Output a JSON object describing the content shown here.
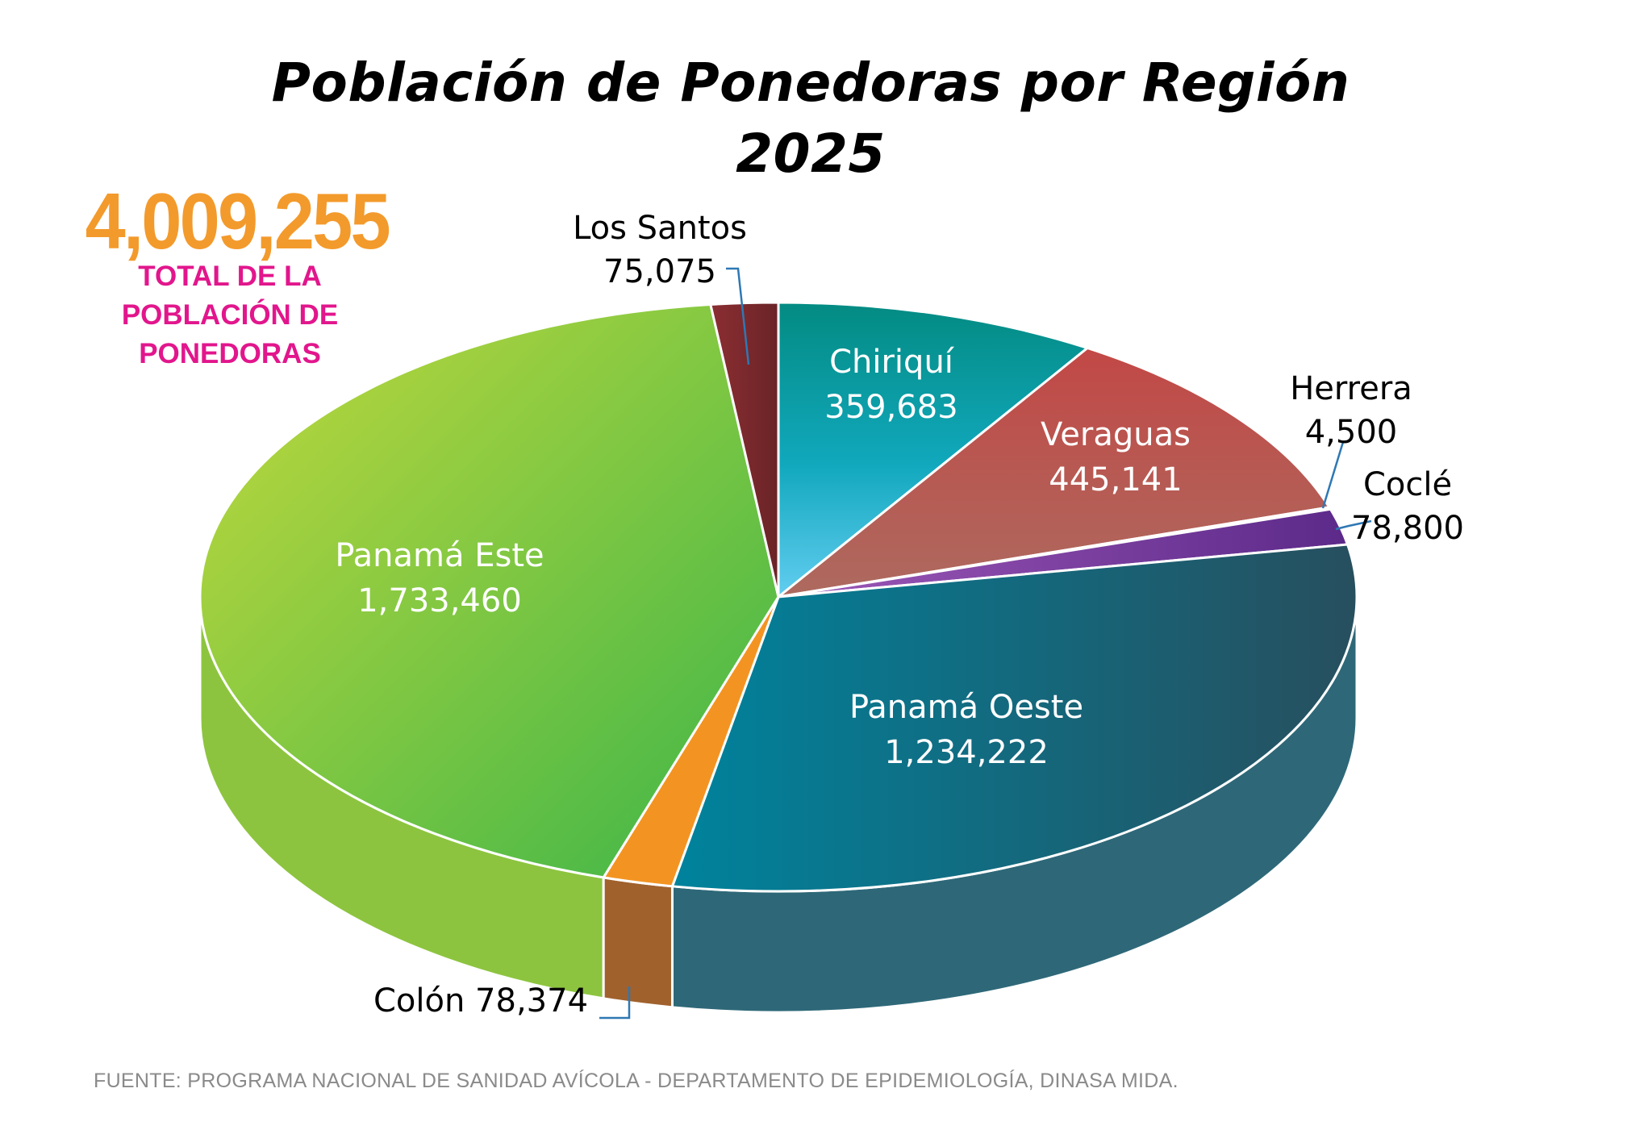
{
  "title": {
    "line1": "Población de Ponedoras por Región",
    "line2": "2025"
  },
  "total": {
    "value": "4,009,255",
    "caption_line1": "TOTAL DE LA",
    "caption_line2": "POBLACIÓN DE",
    "caption_line3": "PONEDORAS"
  },
  "source": "FUENTE: PROGRAMA NACIONAL DE SANIDAD AVÍCOLA -  DEPARTAMENTO DE EPIDEMIOLOGÍA, DINASA MIDA.",
  "chart_data": {
    "type": "pie",
    "title": "Población de Ponedoras por Región 2025",
    "total": 4009255,
    "series": [
      {
        "name": "Chiriquí",
        "value": 359683,
        "label": "359,683",
        "color": "#1aa8b8"
      },
      {
        "name": "Veraguas",
        "value": 445141,
        "label": "445,141",
        "color": "#b95856"
      },
      {
        "name": "Herrera",
        "value": 4500,
        "label": "4,500",
        "color": "#f0c8c0"
      },
      {
        "name": "Coclé",
        "value": 78800,
        "label": "78,800",
        "color": "#6e3296"
      },
      {
        "name": "Panamá Oeste",
        "value": 1234222,
        "label": "1,234,222",
        "color": "#116a86"
      },
      {
        "name": "Colón",
        "value": 78374,
        "label": "78,374",
        "color": "#f39422"
      },
      {
        "name": "Panamá Este",
        "value": 1733460,
        "label": "1,733,460",
        "color": "#7ec242"
      },
      {
        "name": "Los Santos",
        "value": 75075,
        "label": "75,075",
        "color": "#7a2a2e"
      }
    ]
  }
}
